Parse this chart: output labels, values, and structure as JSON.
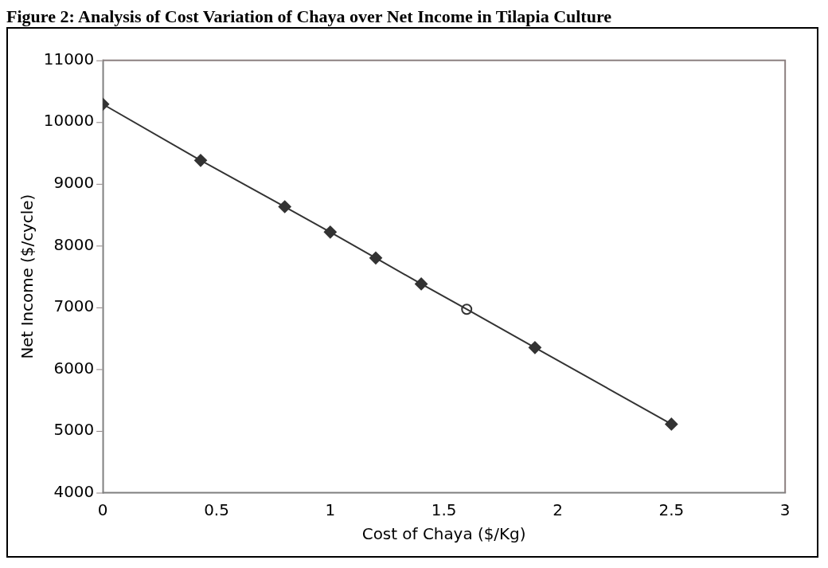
{
  "chart_data": {
    "type": "line",
    "title": "Figure 2: Analysis of Cost Variation of Chaya over Net Income in Tilapia Culture",
    "xlabel": "Cost of Chaya ($/Kg)",
    "ylabel": "Net Income ($/cycle)",
    "xlim": [
      0,
      3
    ],
    "xticks": [
      0,
      0.5,
      1,
      1.5,
      2,
      2.5,
      3
    ],
    "ylim": [
      4000,
      11000
    ],
    "yticks": [
      4000,
      5000,
      6000,
      7000,
      8000,
      9000,
      10000,
      11000
    ],
    "grid": false,
    "legend": false,
    "series": [
      {
        "marker": "none",
        "color": "#333333",
        "x": [
          0,
          0.43,
          0.8,
          1,
          1.2,
          1.4,
          1.6,
          1.9,
          2.5
        ],
        "values": [
          10290,
          9380,
          8630,
          8220,
          7800,
          7380,
          6970,
          6350,
          5110
        ]
      },
      {
        "type": "scatter",
        "marker": "diamond",
        "color": "#333333",
        "x": [
          0,
          0.43,
          0.8,
          1,
          1.2,
          1.4,
          1.9,
          2.5
        ],
        "values": [
          10290,
          9380,
          8630,
          8220,
          7800,
          7380,
          6350,
          5110
        ]
      },
      {
        "type": "scatter",
        "marker": "circle",
        "color": "#333333",
        "x": [
          1.6
        ],
        "values": [
          6970
        ]
      }
    ]
  }
}
